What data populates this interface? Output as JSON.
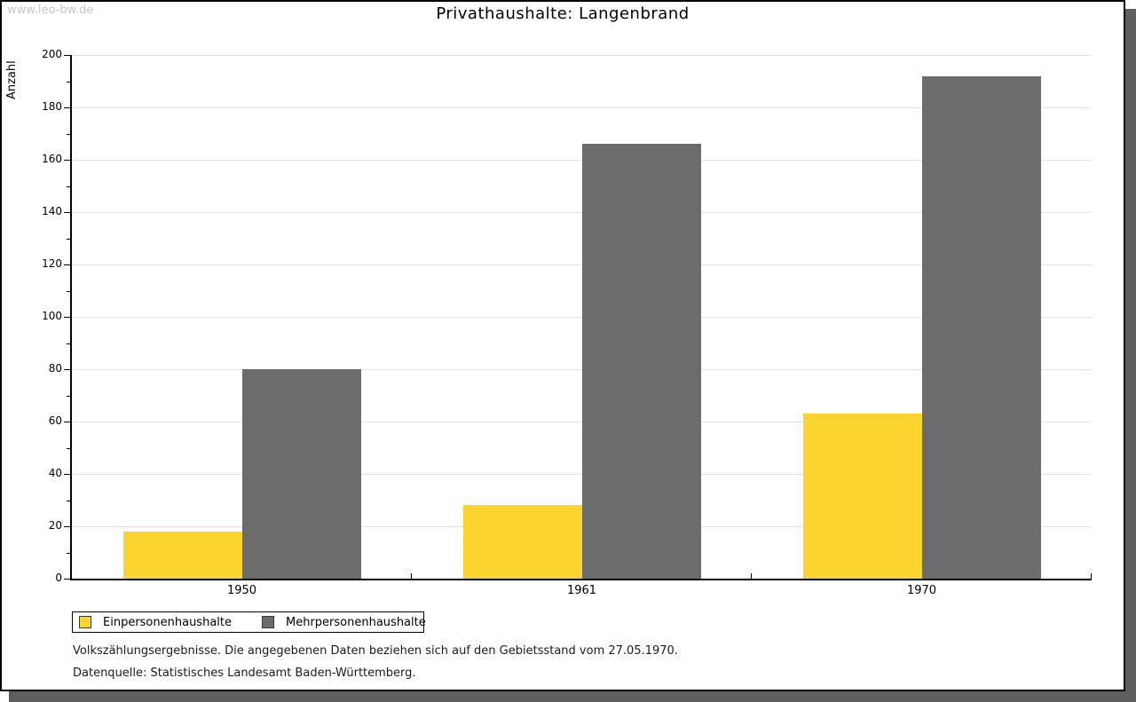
{
  "watermark": "www.leo-bw.de",
  "title": "Privathaushalte: Langenbrand",
  "chart_data": {
    "type": "bar",
    "title": "Privathaushalte: Langenbrand",
    "categories": [
      "1950",
      "1961",
      "1970"
    ],
    "series": [
      {
        "name": "Einpersonenhaushalte",
        "color": "#FCD42F",
        "values": [
          18,
          28,
          63
        ]
      },
      {
        "name": "Mehrpersonenhaushalte",
        "color": "#6C6C6C",
        "values": [
          80,
          166,
          192
        ]
      }
    ],
    "xlabel": "",
    "ylabel": "Anzahl",
    "ylim": [
      0,
      200
    ],
    "yticks": [
      0,
      20,
      40,
      60,
      80,
      100,
      120,
      140,
      160,
      180,
      200
    ],
    "minor_tick_step": 10,
    "grid": true,
    "legend_position": "bottom-left",
    "grid_color": "#E3E3E3"
  },
  "footnotes": {
    "line1": "Volkszählungsergebnisse. Die angegebenen Daten beziehen sich auf den Gebietsstand vom 27.05.1970.",
    "line2": "Datenquelle: Statistisches Landesamt Baden-Württemberg."
  }
}
